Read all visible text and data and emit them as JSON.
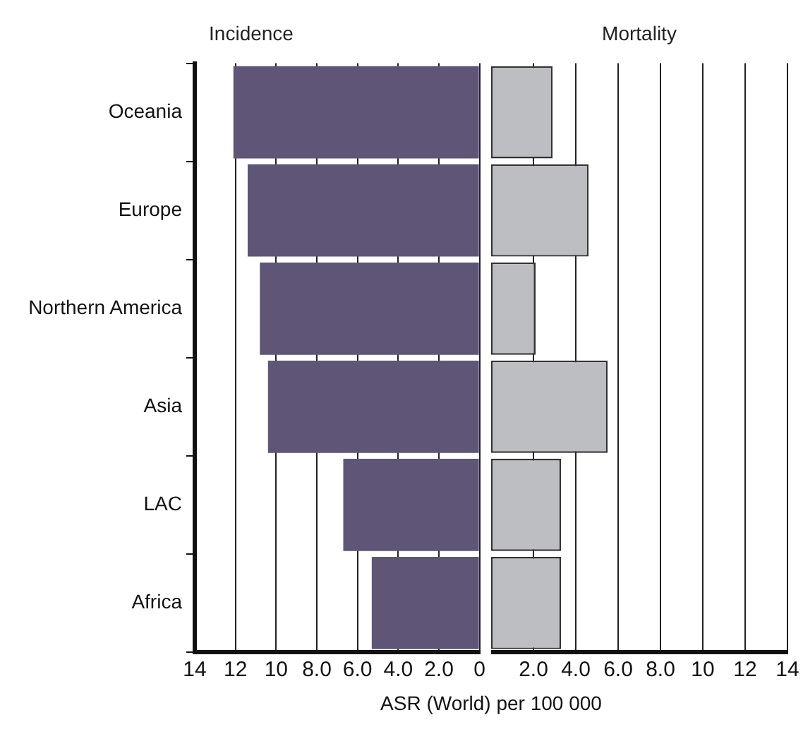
{
  "chart_data": [
    {
      "type": "bar",
      "orientation": "horizontal",
      "title": "Incidence",
      "xlabel": "ASR (World) per 100 000",
      "categories": [
        "Oceania",
        "Europe",
        "Northern America",
        "Asia",
        "LAC",
        "Africa"
      ],
      "values": [
        12.1,
        11.4,
        10.8,
        10.4,
        6.7,
        5.3
      ],
      "color": "#5f5577",
      "xlim": [
        14,
        0
      ],
      "xticks": [
        14,
        12,
        10,
        {
          "value": 8,
          "label": "8.0"
        },
        {
          "value": 6,
          "label": "6.0"
        },
        {
          "value": 4,
          "label": "4.0"
        },
        {
          "value": 2,
          "label": "2.0"
        },
        0
      ],
      "grid": "x"
    },
    {
      "type": "bar",
      "orientation": "horizontal",
      "title": "Mortality",
      "categories": [
        null,
        null,
        null,
        null,
        null,
        null
      ],
      "values": [
        2.9,
        4.6,
        2.1,
        5.5,
        3.3,
        3.3
      ],
      "color": "#bdbec2",
      "xlim": [
        0,
        14
      ],
      "xticks": [
        {
          "value": 2,
          "label": "2.0"
        },
        {
          "value": 4,
          "label": "4.0"
        },
        {
          "value": 6,
          "label": "6.0"
        },
        {
          "value": 8,
          "label": "8.0"
        },
        10,
        12,
        14
      ],
      "grid": "x",
      "tick_labels": "x"
    }
  ]
}
